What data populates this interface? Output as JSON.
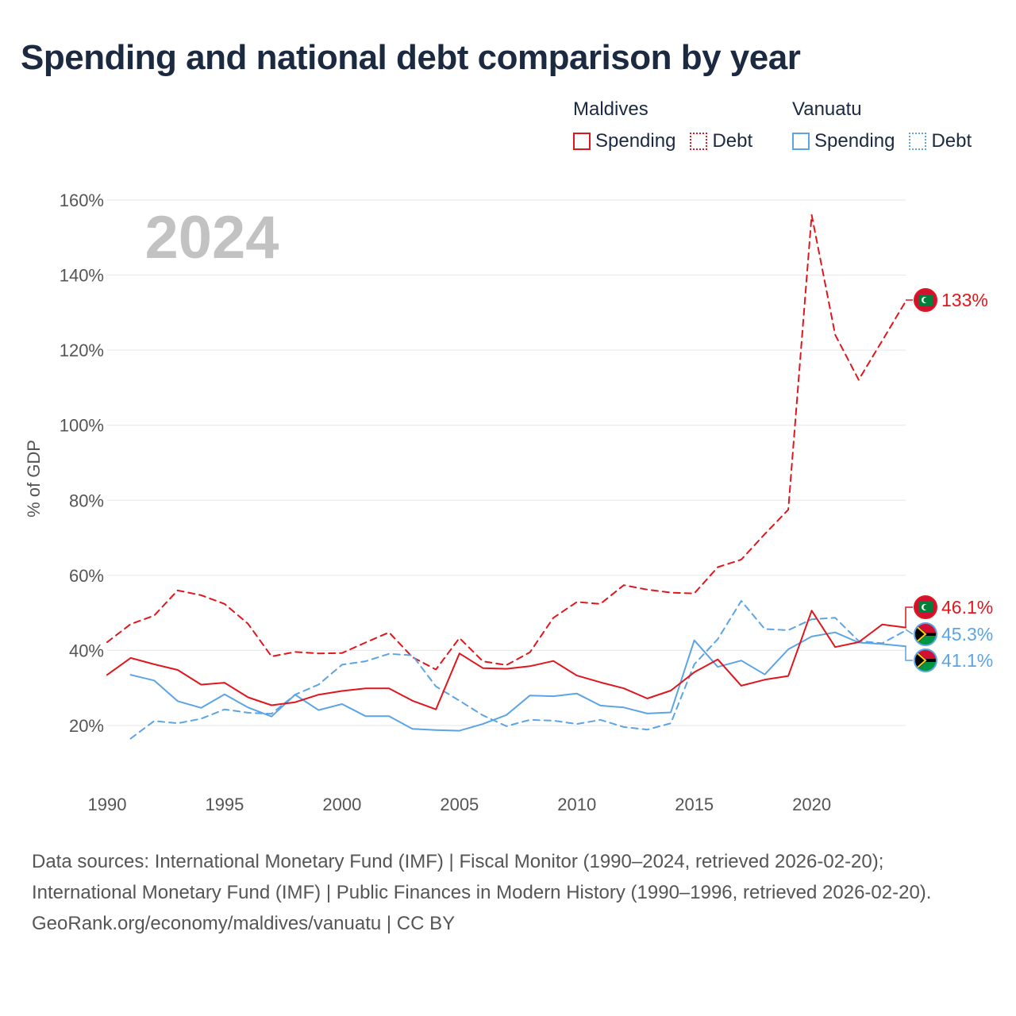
{
  "title": "Spending and national debt comparison by year",
  "legend": {
    "groups": [
      {
        "name": "Maldives",
        "color": "#e0161d",
        "items": [
          {
            "label": "Spending",
            "style": "solid"
          },
          {
            "label": "Debt",
            "style": "dotted"
          }
        ]
      },
      {
        "name": "Vanuatu",
        "color": "#5ba4e5",
        "items": [
          {
            "label": "Spending",
            "style": "solid"
          },
          {
            "label": "Debt",
            "style": "dotted"
          }
        ]
      }
    ]
  },
  "chart_data": {
    "type": "line",
    "ylabel": "% of GDP",
    "xlabel": "",
    "year_watermark": "2024",
    "xlim": [
      1990,
      2024
    ],
    "ylim": [
      6,
      165
    ],
    "x_ticks": [
      1990,
      1995,
      2000,
      2005,
      2010,
      2015,
      2020
    ],
    "y_ticks": [
      20,
      40,
      60,
      80,
      100,
      120,
      140,
      160
    ],
    "y_tick_labels": [
      "20%",
      "40%",
      "60%",
      "80%",
      "100%",
      "120%",
      "140%",
      "160%"
    ],
    "grid": true,
    "series": [
      {
        "name": "Maldives Spending",
        "color": "#e0161d",
        "dash": "solid",
        "x": [
          1990,
          1991,
          1992,
          1993,
          1994,
          1995,
          1996,
          1997,
          1998,
          1999,
          2000,
          2001,
          2002,
          2003,
          2004,
          2005,
          2006,
          2007,
          2008,
          2009,
          2010,
          2011,
          2012,
          2013,
          2014,
          2015,
          2016,
          2017,
          2018,
          2019,
          2020,
          2021,
          2022,
          2023,
          2024
        ],
        "values": [
          33.5,
          38,
          36.3,
          34.8,
          30.9,
          31.4,
          27.5,
          25.4,
          26.2,
          28.2,
          29.2,
          29.9,
          29.9,
          26.6,
          24.3,
          39.2,
          35.3,
          35.1,
          35.8,
          37.2,
          33.3,
          31.5,
          29.9,
          27.2,
          29.3,
          34.2,
          37.6,
          30.6,
          32.2,
          33.2,
          50.6,
          40.9,
          42.2,
          46.9,
          46.1
        ],
        "end_label": "46.1%"
      },
      {
        "name": "Maldives Debt",
        "color": "#e0161d",
        "dash": "dashed",
        "x": [
          1990,
          1991,
          1992,
          1993,
          1994,
          1995,
          1996,
          1997,
          1998,
          1999,
          2000,
          2001,
          2002,
          2003,
          2004,
          2005,
          2006,
          2007,
          2008,
          2009,
          2010,
          2011,
          2012,
          2013,
          2014,
          2015,
          2016,
          2017,
          2018,
          2019,
          2020,
          2021,
          2022,
          2023,
          2024
        ],
        "values": [
          42.2,
          47,
          49.3,
          56,
          54.7,
          52.4,
          47.1,
          38.4,
          39.6,
          39.2,
          39.3,
          42.1,
          44.8,
          38.2,
          34.9,
          43.3,
          37.1,
          36.1,
          39.5,
          48.7,
          52.9,
          52.4,
          57.4,
          56.2,
          55.4,
          55.2,
          62.2,
          64.2,
          71,
          77.5,
          156,
          124.1,
          112.1,
          122.5,
          133
        ],
        "end_label": "133%"
      },
      {
        "name": "Vanuatu Spending",
        "color": "#5ba4e5",
        "dash": "solid",
        "x": [
          1991,
          1992,
          1993,
          1994,
          1995,
          1996,
          1997,
          1998,
          1999,
          2000,
          2001,
          2002,
          2003,
          2004,
          2005,
          2006,
          2007,
          2008,
          2009,
          2010,
          2011,
          2012,
          2013,
          2014,
          2015,
          2016,
          2017,
          2018,
          2019,
          2020,
          2021,
          2022,
          2023,
          2024
        ],
        "values": [
          33.5,
          32,
          26.5,
          24.7,
          28.3,
          24.8,
          22.4,
          28.2,
          24.1,
          25.7,
          22.5,
          22.5,
          19.1,
          18.8,
          18.6,
          20.4,
          22.8,
          28,
          27.8,
          28.5,
          25.3,
          24.8,
          23.2,
          23.5,
          42.7,
          35.6,
          37.3,
          33.6,
          40.3,
          43.7,
          44.8,
          42.1,
          41.7,
          41.1
        ],
        "end_label": "41.1%"
      },
      {
        "name": "Vanuatu Debt",
        "color": "#5ba4e5",
        "dash": "dashed",
        "x": [
          1991,
          1992,
          1993,
          1994,
          1995,
          1996,
          1997,
          1998,
          1999,
          2000,
          2001,
          2002,
          2003,
          2004,
          2005,
          2006,
          2007,
          2008,
          2009,
          2010,
          2011,
          2012,
          2013,
          2014,
          2015,
          2016,
          2017,
          2018,
          2019,
          2020,
          2021,
          2022,
          2023,
          2024
        ],
        "values": [
          16.5,
          21.2,
          20.6,
          21.8,
          24.3,
          23.4,
          23.1,
          28.2,
          30.9,
          36.2,
          37.1,
          39.1,
          38.7,
          30.4,
          26.6,
          22.7,
          19.8,
          21.5,
          21.3,
          20.4,
          21.5,
          19.6,
          18.9,
          20.6,
          36.3,
          43,
          53.2,
          45.7,
          45.4,
          48.3,
          48.7,
          42.5,
          41.9,
          45.3
        ],
        "end_label": "45.3%"
      }
    ]
  },
  "footer": {
    "sources": "Data sources: International Monetary Fund (IMF) | Fiscal Monitor (1990–2024, retrieved 2026-02-20); International Monetary Fund (IMF) | Public Finances in Modern History (1990–1996, retrieved 2026-02-20).",
    "attribution": "GeoRank.org/economy/maldives/vanuatu | CC BY"
  }
}
